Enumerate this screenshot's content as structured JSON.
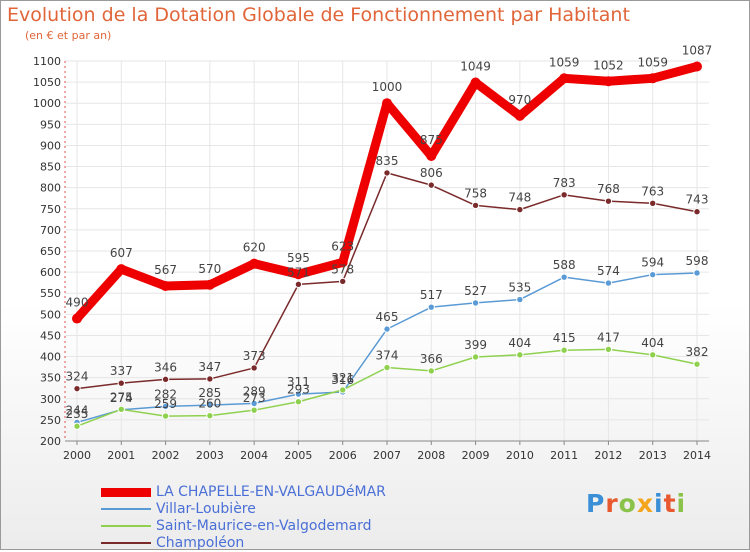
{
  "title": "Evolution de la Dotation Globale de Fonctionnement par Habitant",
  "subtitle": "(en € et par an)",
  "logo": {
    "text": "Proxiti",
    "letter_colors": [
      "#3b8fd6",
      "#e8592f",
      "#8bc34a",
      "#f4a51c",
      "#3b8fd6",
      "#e8592f",
      "#8bc34a"
    ]
  },
  "chart_data": {
    "type": "line",
    "title": "Evolution de la Dotation Globale de Fonctionnement par Habitant",
    "subtitle": "(en € et par an)",
    "xlabel": "",
    "ylabel": "",
    "x": [
      "2000",
      "2001",
      "2002",
      "2003",
      "2004",
      "2005",
      "2006",
      "2007",
      "2008",
      "2009",
      "2010",
      "2011",
      "2012",
      "2013",
      "2014"
    ],
    "ylim": [
      200,
      1100
    ],
    "yticks": [
      200,
      250,
      300,
      350,
      400,
      450,
      500,
      550,
      600,
      650,
      700,
      750,
      800,
      850,
      900,
      950,
      1000,
      1050,
      1100
    ],
    "grid": true,
    "legend_position": "bottom-left",
    "series": [
      {
        "name": "LA CHAPELLE-EN-VALGAUDéMAR",
        "color": "#ee0000",
        "values": [
          490,
          607,
          567,
          570,
          620,
          595,
          623,
          1000,
          875,
          1049,
          970,
          1059,
          1052,
          1059,
          1087
        ],
        "labels": [
          "490",
          "607",
          "567",
          "570",
          "620",
          "595",
          "623",
          "1000",
          "875",
          "1049",
          "970",
          "1059",
          "1052",
          "1059",
          "1087"
        ]
      },
      {
        "name": "Villar-Loubière",
        "color": "#5b9bd5",
        "values": [
          244,
          274,
          282,
          285,
          289,
          311,
          316,
          465,
          517,
          527,
          535,
          588,
          574,
          594,
          598
        ],
        "labels": [
          "244",
          "274",
          "282",
          "285",
          "289",
          "311",
          "316",
          "465",
          "517",
          "527",
          "535",
          "588",
          "574",
          "594",
          "598"
        ]
      },
      {
        "name": "Saint-Maurice-en-Valgodemard",
        "color": "#8fd14f",
        "values": [
          235,
          275,
          259,
          260,
          273,
          293,
          321,
          374,
          366,
          399,
          404,
          415,
          417,
          404,
          382
        ],
        "labels": [
          "235",
          "275",
          "259",
          "260",
          "273",
          "293",
          "321",
          "374",
          "366",
          "399",
          "404",
          "415",
          "417",
          "404",
          "382"
        ]
      },
      {
        "name": "Champoléon",
        "color": "#7a2a2a",
        "values": [
          324,
          337,
          346,
          347,
          373,
          571,
          578,
          835,
          806,
          758,
          748,
          783,
          768,
          763,
          743
        ],
        "labels": [
          "324",
          "337",
          "346",
          "347",
          "373",
          "571",
          "578",
          "835",
          "806",
          "758",
          "748",
          "783",
          "768",
          "763",
          "743"
        ]
      }
    ]
  }
}
